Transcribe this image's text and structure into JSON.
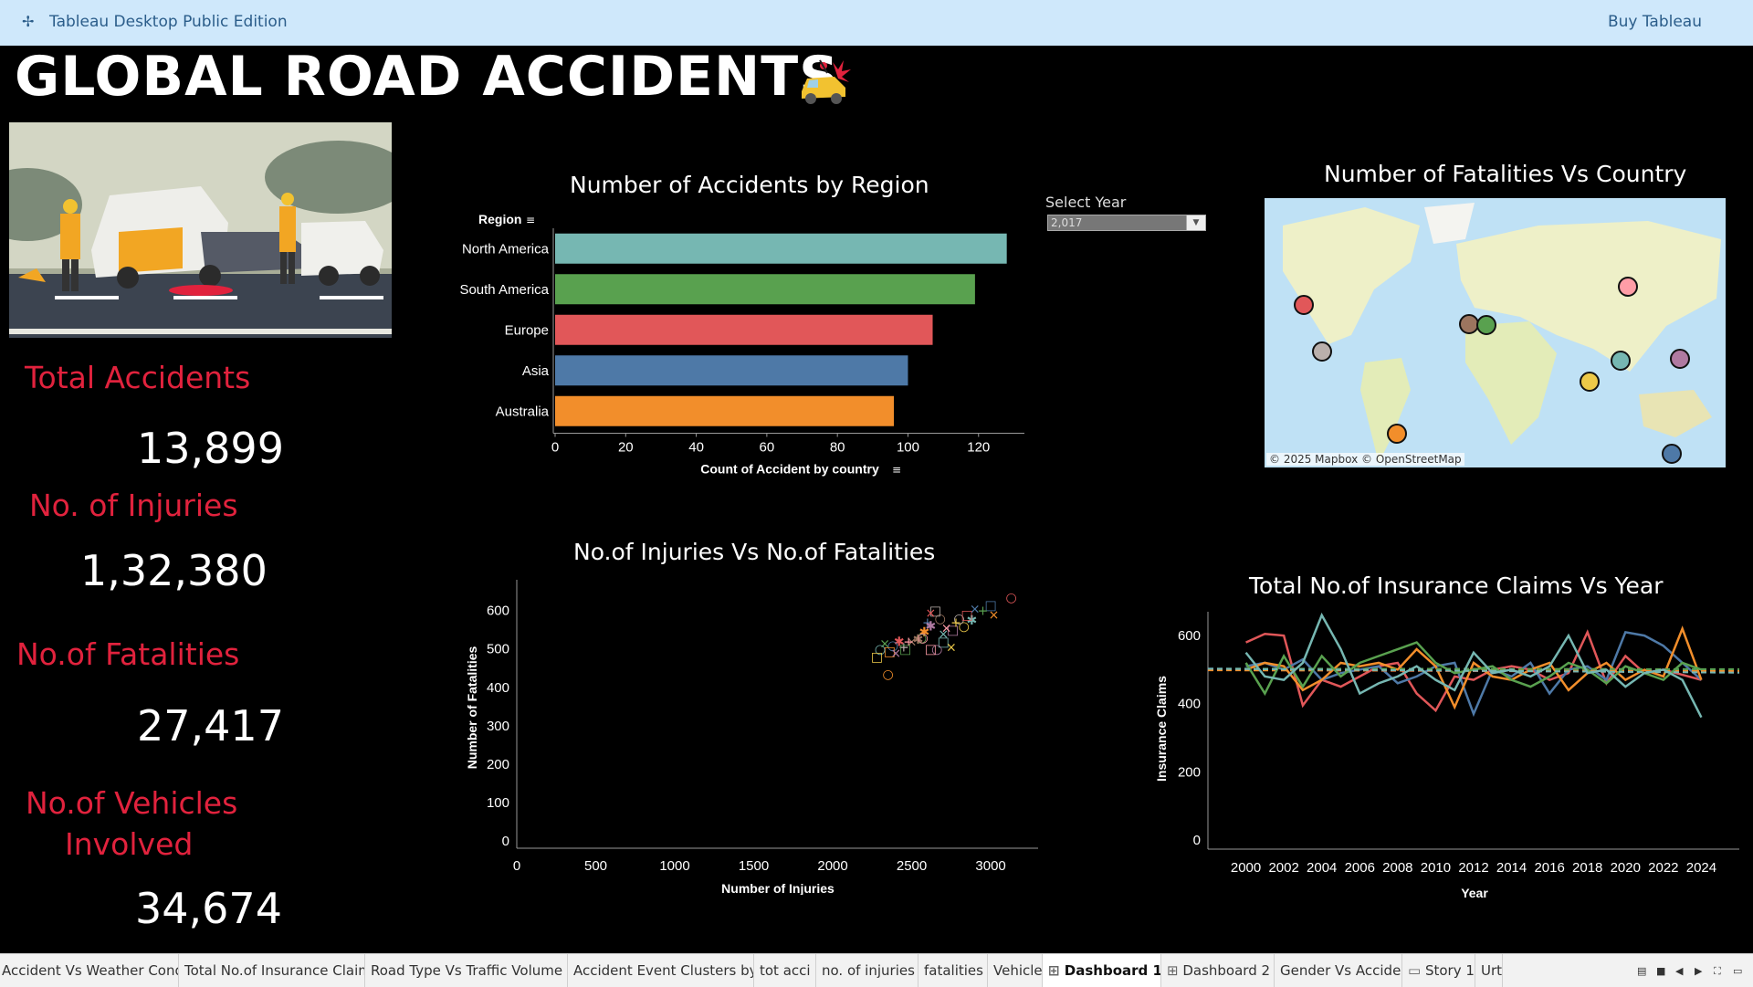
{
  "app": {
    "title": "Tableau Desktop Public Edition",
    "buy_label": "Buy Tableau"
  },
  "dashboard": {
    "title": "GLOBAL ROAD ACCIDENTS"
  },
  "kpis": [
    {
      "label": "Total Accidents",
      "value": "13,899"
    },
    {
      "label": "No. of Injuries",
      "value": "1,32,380"
    },
    {
      "label": "No.of Fatalities",
      "value": "27,417"
    },
    {
      "label": "No.of Vehicles Involved",
      "label_line1": "No.of Vehicles",
      "label_line2": "Involved",
      "value": "34,674"
    }
  ],
  "filter": {
    "label": "Select Year",
    "value": "2,017"
  },
  "map": {
    "title": "Number of Fatalities Vs Country",
    "attribution": "© 2025 Mapbox © OpenStreetMap"
  },
  "colors": {
    "accent_red": "#e1223d",
    "topbar": "#cfe8fb",
    "teal": "#76b7b2",
    "green": "#59a14f",
    "red": "#e15759",
    "blue": "#4e79a7",
    "orange": "#f28e2b"
  },
  "chart_data": [
    {
      "type": "bar",
      "title": "Number of Accidents by Region",
      "ylabel": "Region",
      "xlabel": "Count of Accident by country",
      "categories": [
        "North America",
        "South America",
        "Europe",
        "Asia",
        "Australia"
      ],
      "values": [
        128,
        119,
        107,
        100,
        96
      ],
      "colors": [
        "#76b7b2",
        "#59a14f",
        "#e15759",
        "#4e79a7",
        "#f28e2b"
      ],
      "xticks": [
        "0",
        "20",
        "40",
        "60",
        "80",
        "100",
        "120"
      ],
      "xlim": [
        0,
        133
      ]
    },
    {
      "type": "scatter",
      "title": "No.of Injuries Vs No.of Fatalities",
      "xlabel": "Number of Injuries",
      "ylabel": "Number of Fatalities",
      "xticks": [
        "0",
        "500",
        "1000",
        "1500",
        "2000",
        "2500",
        "3000"
      ],
      "yticks": [
        "0",
        "100",
        "200",
        "300",
        "400",
        "500",
        "600"
      ],
      "xlim": [
        0,
        3300
      ],
      "ylim": [
        0,
        680
      ],
      "points": [
        [
          3130,
          635
        ],
        [
          3000,
          615
        ],
        [
          3020,
          590
        ],
        [
          2950,
          600
        ],
        [
          2880,
          575
        ],
        [
          2830,
          560
        ],
        [
          2760,
          550
        ],
        [
          2720,
          555
        ],
        [
          2680,
          580
        ],
        [
          2650,
          600
        ],
        [
          2620,
          595
        ],
        [
          2600,
          570
        ],
        [
          2580,
          545
        ],
        [
          2560,
          530
        ],
        [
          2700,
          520
        ],
        [
          2750,
          505
        ],
        [
          2660,
          500
        ],
        [
          2620,
          500
        ],
        [
          2500,
          520
        ],
        [
          2450,
          505
        ],
        [
          2420,
          520
        ],
        [
          2380,
          510
        ],
        [
          2360,
          495
        ],
        [
          2330,
          515
        ],
        [
          2300,
          500
        ],
        [
          2280,
          480
        ],
        [
          2400,
          490
        ],
        [
          2480,
          520
        ],
        [
          2540,
          525
        ],
        [
          2800,
          580
        ],
        [
          2850,
          590
        ],
        [
          2900,
          605
        ],
        [
          2350,
          435
        ],
        [
          2460,
          500
        ],
        [
          2700,
          540
        ],
        [
          2780,
          570
        ],
        [
          2620,
          560
        ],
        [
          2570,
          530
        ]
      ]
    },
    {
      "type": "line",
      "title": "Total No.of Insurance Claims Vs Year",
      "xlabel": "Year",
      "ylabel": "Insurance Claims",
      "xticks": [
        "2000",
        "2002",
        "2004",
        "2006",
        "2008",
        "2010",
        "2012",
        "2014",
        "2016",
        "2018",
        "2020",
        "2022",
        "2024"
      ],
      "yticks": [
        "0",
        "200",
        "400",
        "600"
      ],
      "x": [
        2000,
        2001,
        2002,
        2003,
        2004,
        2005,
        2006,
        2007,
        2008,
        2009,
        2010,
        2011,
        2012,
        2013,
        2014,
        2015,
        2016,
        2017,
        2018,
        2019,
        2020,
        2021,
        2022,
        2023,
        2024
      ],
      "ylim": [
        0,
        670
      ],
      "series": [
        {
          "color": "#e15759",
          "values": [
            580,
            605,
            600,
            395,
            470,
            450,
            480,
            510,
            520,
            430,
            380,
            480,
            470,
            500,
            510,
            500,
            470,
            490,
            610,
            460,
            540,
            490,
            500,
            485,
            470
          ]
        },
        {
          "color": "#4e79a7",
          "values": [
            510,
            520,
            500,
            530,
            470,
            490,
            500,
            510,
            460,
            480,
            510,
            520,
            370,
            500,
            480,
            520,
            430,
            500,
            510,
            470,
            610,
            600,
            570,
            520,
            470
          ]
        },
        {
          "color": "#f28e2b",
          "values": [
            500,
            520,
            510,
            440,
            470,
            520,
            510,
            520,
            500,
            560,
            510,
            390,
            520,
            480,
            470,
            500,
            520,
            440,
            490,
            520,
            470,
            500,
            480,
            620,
            470
          ]
        },
        {
          "color": "#59a14f",
          "values": [
            520,
            430,
            540,
            450,
            540,
            480,
            520,
            540,
            560,
            580,
            520,
            490,
            500,
            510,
            470,
            450,
            480,
            520,
            500,
            460,
            510,
            490,
            470,
            520,
            500
          ]
        },
        {
          "color": "#76b7b2",
          "values": [
            550,
            480,
            470,
            520,
            660,
            560,
            430,
            460,
            480,
            510,
            470,
            440,
            550,
            490,
            500,
            480,
            510,
            600,
            490,
            500,
            450,
            490,
            500,
            470,
            360
          ]
        }
      ]
    }
  ],
  "tabs": [
    {
      "label": "Accident Vs Weather Cond...",
      "icon": ""
    },
    {
      "label": "Total No.of Insurance Claims Vs ...",
      "icon": ""
    },
    {
      "label": "Road Type Vs Traffic Volume",
      "icon": ""
    },
    {
      "label": "Accident Event Clusters by Vehi...",
      "icon": ""
    },
    {
      "label": "tot acci",
      "icon": ""
    },
    {
      "label": "no. of injuries",
      "icon": ""
    },
    {
      "label": "fatalities",
      "icon": ""
    },
    {
      "label": "Vehicle",
      "icon": ""
    },
    {
      "label": "Dashboard 1",
      "icon": "dashboard-icon",
      "active": true
    },
    {
      "label": "Dashboard 2",
      "icon": "dashboard-icon"
    },
    {
      "label": "Gender Vs Accidents",
      "icon": ""
    },
    {
      "label": "Story 1",
      "icon": "story-icon"
    },
    {
      "label": "Urt",
      "icon": ""
    }
  ]
}
